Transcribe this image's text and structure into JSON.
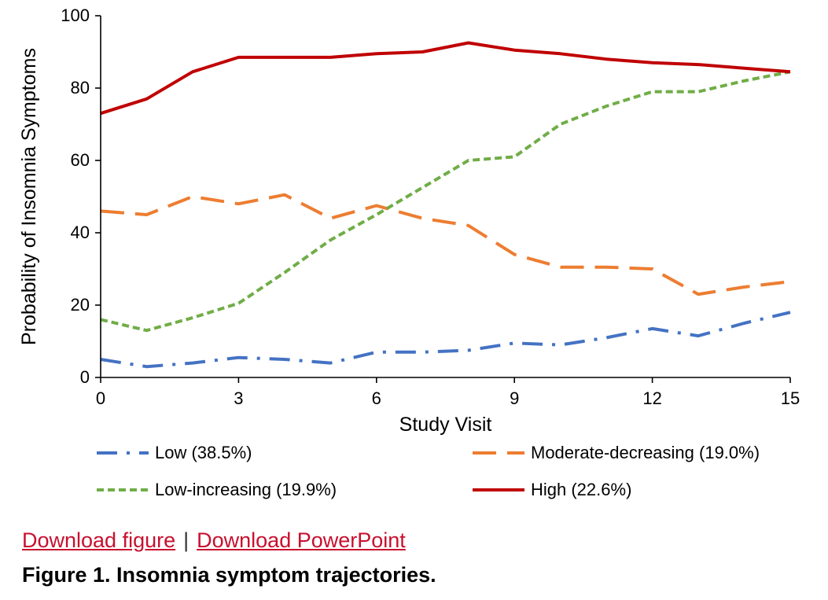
{
  "chart_data": {
    "type": "line",
    "title": "",
    "xlabel": "Study Visit",
    "ylabel": "Probability of Insomnia Symptoms",
    "xlim": [
      0,
      15
    ],
    "ylim": [
      0,
      100
    ],
    "xticks": [
      0,
      3,
      6,
      9,
      12,
      15
    ],
    "yticks": [
      0,
      20,
      40,
      60,
      80,
      100
    ],
    "xtick_labels": [
      "0",
      "3",
      "6",
      "9",
      "12",
      "15"
    ],
    "ytick_labels": [
      "0",
      "20",
      "40",
      "60",
      "80",
      "100"
    ],
    "grid": false,
    "legend_position": "bottom",
    "x": [
      0,
      1,
      2,
      3,
      4,
      5,
      6,
      7,
      8,
      9,
      10,
      11,
      12,
      13,
      14,
      15
    ],
    "series": [
      {
        "name": "Low (38.5%)",
        "color": "#4472c4",
        "dash": "dash-dot",
        "values": [
          5,
          3,
          4,
          5.5,
          5,
          4,
          7,
          7,
          7.5,
          9.5,
          9,
          11,
          13.5,
          11.5,
          15,
          18
        ]
      },
      {
        "name": "Moderate-decreasing (19.0%)",
        "color": "#ed7d31",
        "dash": "long-dash",
        "values": [
          46,
          45,
          50,
          48,
          50.5,
          44,
          47.5,
          44,
          42,
          34,
          30.5,
          30.5,
          30,
          23,
          25,
          26.5
        ]
      },
      {
        "name": "Low-increasing (19.9%)",
        "color": "#70ad47",
        "dash": "short-dash",
        "values": [
          16,
          13,
          16.5,
          20.5,
          29,
          38,
          45,
          52.5,
          60,
          61,
          70,
          75,
          79,
          79,
          82,
          84.5
        ]
      },
      {
        "name": "High (22.6%)",
        "color": "#c00000",
        "dash": "solid",
        "values": [
          73,
          77,
          84.5,
          88.5,
          88.5,
          88.5,
          89.5,
          90,
          92.5,
          90.5,
          89.5,
          88,
          87,
          86.5,
          85.5,
          84.5
        ]
      }
    ]
  },
  "links": {
    "download_figure": "Download figure",
    "separator": "|",
    "download_powerpoint": "Download PowerPoint"
  },
  "caption": "Figure 1. Insomnia symptom trajectories."
}
